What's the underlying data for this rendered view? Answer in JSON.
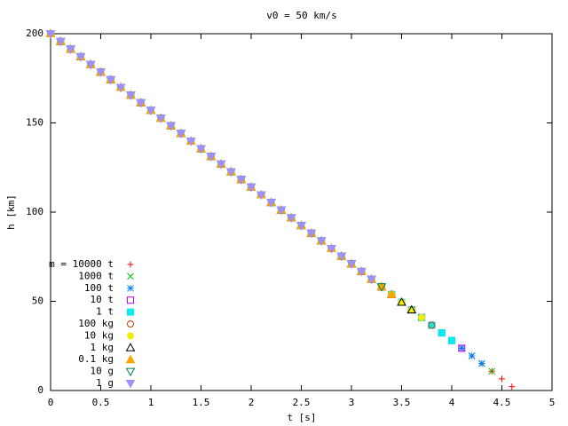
{
  "chart_data": {
    "type": "scatter",
    "title": "v0 = 50 km/s",
    "x_label": "t [s]",
    "y_label": "h [km]",
    "xlim": [
      0,
      5
    ],
    "ylim": [
      0,
      200
    ],
    "xticks": [
      0,
      0.5,
      1,
      1.5,
      2,
      2.5,
      3,
      3.5,
      4,
      4.5,
      5
    ],
    "yticks": [
      0,
      50,
      100,
      150,
      200
    ],
    "legend": "lower-left",
    "x": [
      0,
      0.1,
      0.2,
      0.3,
      0.4,
      0.5,
      0.6,
      0.7,
      0.8,
      0.9,
      1,
      1.1,
      1.2,
      1.3,
      1.4,
      1.5,
      1.6,
      1.7,
      1.8,
      1.9,
      2,
      2.1,
      2.2,
      2.3,
      2.4,
      2.5,
      2.6,
      2.7,
      2.8,
      2.9,
      3,
      3.1,
      3.2,
      3.3,
      3.4,
      3.5,
      3.6,
      3.7,
      3.8,
      3.9,
      4,
      4.1,
      4.2,
      4.3,
      4.4,
      4.5,
      4.6
    ],
    "series": [
      {
        "name": "m = 10000 t",
        "color": "#ff0000",
        "marker": "plus",
        "values": [
          200,
          195.7,
          191.4,
          187.1,
          182.8,
          178.5,
          174.2,
          169.9,
          165.6,
          161.3,
          157,
          152.7,
          148.4,
          144.1,
          139.8,
          135.5,
          131.2,
          126.9,
          122.6,
          118.3,
          114,
          109.7,
          105.4,
          101.1,
          96.8,
          92.5,
          88.2,
          83.9,
          79.6,
          75.3,
          71,
          66.7,
          62.4,
          58.1,
          53.8,
          49.5,
          45.2,
          40.9,
          36.6,
          32.3,
          28,
          23.7,
          19.4,
          15.1,
          10.8,
          6.5,
          2.2
        ]
      },
      {
        "name": "1000 t",
        "color": "#00c000",
        "marker": "cross",
        "values": [
          200,
          195.7,
          191.4,
          187.1,
          182.8,
          178.5,
          174.2,
          169.9,
          165.6,
          161.3,
          157,
          152.7,
          148.4,
          144.1,
          139.8,
          135.5,
          131.2,
          126.9,
          122.6,
          118.3,
          114,
          109.7,
          105.4,
          101.1,
          96.8,
          92.5,
          88.2,
          83.9,
          79.6,
          75.3,
          71,
          66.7,
          62.4,
          58.1,
          53.8,
          49.5,
          45.2,
          40.9,
          36.6,
          32.3,
          28,
          23.7,
          19.4,
          15.1,
          10.8,
          null,
          null
        ]
      },
      {
        "name": "100 t",
        "color": "#0080ff",
        "marker": "star",
        "values": [
          200,
          195.7,
          191.4,
          187.1,
          182.8,
          178.5,
          174.2,
          169.9,
          165.6,
          161.3,
          157,
          152.7,
          148.4,
          144.1,
          139.8,
          135.5,
          131.2,
          126.9,
          122.6,
          118.3,
          114,
          109.7,
          105.4,
          101.1,
          96.8,
          92.5,
          88.2,
          83.9,
          79.6,
          75.3,
          71,
          66.7,
          62.4,
          58.1,
          53.8,
          49.5,
          45.2,
          40.9,
          36.6,
          32.3,
          28,
          23.7,
          19.4,
          15.1,
          null,
          null,
          null
        ]
      },
      {
        "name": "10 t",
        "color": "#c000ff",
        "marker": "square",
        "values": [
          200,
          195.7,
          191.4,
          187.1,
          182.8,
          178.5,
          174.2,
          169.9,
          165.6,
          161.3,
          157,
          152.7,
          148.4,
          144.1,
          139.8,
          135.5,
          131.2,
          126.9,
          122.6,
          118.3,
          114,
          109.7,
          105.4,
          101.1,
          96.8,
          92.5,
          88.2,
          83.9,
          79.6,
          75.3,
          71,
          66.7,
          62.4,
          58.1,
          53.8,
          49.5,
          45.2,
          40.9,
          36.6,
          32.3,
          28,
          23.7,
          null,
          null,
          null,
          null,
          null
        ]
      },
      {
        "name": "1 t",
        "color": "#00eeee",
        "marker": "square-filled",
        "values": [
          200,
          195.7,
          191.4,
          187.1,
          182.8,
          178.5,
          174.2,
          169.9,
          165.6,
          161.3,
          157,
          152.7,
          148.4,
          144.1,
          139.8,
          135.5,
          131.2,
          126.9,
          122.6,
          118.3,
          114,
          109.7,
          105.4,
          101.1,
          96.8,
          92.5,
          88.2,
          83.9,
          79.6,
          75.3,
          71,
          66.7,
          62.4,
          58.1,
          53.8,
          49.5,
          45.2,
          40.9,
          36.6,
          32.3,
          28,
          null,
          null,
          null,
          null,
          null,
          null
        ]
      },
      {
        "name": "100 kg",
        "color": "#c04000",
        "marker": "circle",
        "values": [
          200,
          195.7,
          191.4,
          187.1,
          182.8,
          178.5,
          174.2,
          169.9,
          165.6,
          161.3,
          157,
          152.7,
          148.4,
          144.1,
          139.8,
          135.5,
          131.2,
          126.9,
          122.6,
          118.3,
          114,
          109.7,
          105.4,
          101.1,
          96.8,
          92.5,
          88.2,
          83.9,
          79.6,
          75.3,
          71,
          66.7,
          62.4,
          58.1,
          53.8,
          49.5,
          45.2,
          40.9,
          36.6,
          null,
          null,
          null,
          null,
          null,
          null,
          null,
          null
        ]
      },
      {
        "name": "10 kg",
        "color": "#eeee00",
        "marker": "circle-filled",
        "values": [
          200,
          195.7,
          191.4,
          187.1,
          182.8,
          178.5,
          174.2,
          169.9,
          165.6,
          161.3,
          157,
          152.7,
          148.4,
          144.1,
          139.8,
          135.5,
          131.2,
          126.9,
          122.6,
          118.3,
          114,
          109.7,
          105.4,
          101.1,
          96.8,
          92.5,
          88.2,
          83.9,
          79.6,
          75.3,
          71,
          66.7,
          62.4,
          58.1,
          53.8,
          49.5,
          45.2,
          40.9,
          null,
          null,
          null,
          null,
          null,
          null,
          null,
          null,
          null
        ]
      },
      {
        "name": "1 kg",
        "color": "#000000",
        "marker": "triangle",
        "values": [
          200,
          195.7,
          191.4,
          187.1,
          182.8,
          178.5,
          174.2,
          169.9,
          165.6,
          161.3,
          157,
          152.7,
          148.4,
          144.1,
          139.8,
          135.5,
          131.2,
          126.9,
          122.6,
          118.3,
          114,
          109.7,
          105.4,
          101.1,
          96.8,
          92.5,
          88.2,
          83.9,
          79.6,
          75.3,
          71,
          66.7,
          62.4,
          58.1,
          53.8,
          49.5,
          45.2,
          null,
          null,
          null,
          null,
          null,
          null,
          null,
          null,
          null,
          null
        ]
      },
      {
        "name": "0.1 kg",
        "color": "#ffa500",
        "marker": "triangle-filled",
        "values": [
          200,
          195.7,
          191.4,
          187.1,
          182.8,
          178.5,
          174.2,
          169.9,
          165.6,
          161.3,
          157,
          152.7,
          148.4,
          144.1,
          139.8,
          135.5,
          131.2,
          126.9,
          122.6,
          118.3,
          114,
          109.7,
          105.4,
          101.1,
          96.8,
          92.5,
          88.2,
          83.9,
          79.6,
          75.3,
          71,
          66.7,
          62.4,
          58.1,
          53.8,
          null,
          null,
          null,
          null,
          null,
          null,
          null,
          null,
          null,
          null,
          null,
          null
        ]
      },
      {
        "name": "10 g",
        "color": "#008040",
        "marker": "triangle-down",
        "values": [
          200,
          195.7,
          191.4,
          187.1,
          182.8,
          178.5,
          174.2,
          169.9,
          165.6,
          161.3,
          157,
          152.7,
          148.4,
          144.1,
          139.8,
          135.5,
          131.2,
          126.9,
          122.6,
          118.3,
          114,
          109.7,
          105.4,
          101.1,
          96.8,
          92.5,
          88.2,
          83.9,
          79.6,
          75.3,
          71,
          66.7,
          62.4,
          58.1,
          null,
          null,
          null,
          null,
          null,
          null,
          null,
          null,
          null,
          null,
          null,
          null,
          null
        ]
      },
      {
        "name": "1 g",
        "color": "#9f8fff",
        "marker": "triangle-down-filled",
        "values": [
          200,
          195.7,
          191.4,
          187.1,
          182.8,
          178.5,
          174.2,
          169.9,
          165.6,
          161.3,
          157,
          152.7,
          148.4,
          144.1,
          139.8,
          135.5,
          131.2,
          126.9,
          122.6,
          118.3,
          114,
          109.7,
          105.4,
          101.1,
          96.8,
          92.5,
          88.2,
          83.9,
          79.6,
          75.3,
          71,
          66.7,
          62.4,
          null,
          null,
          null,
          null,
          null,
          null,
          null,
          null,
          null,
          null,
          null,
          null,
          null,
          null
        ]
      }
    ]
  }
}
